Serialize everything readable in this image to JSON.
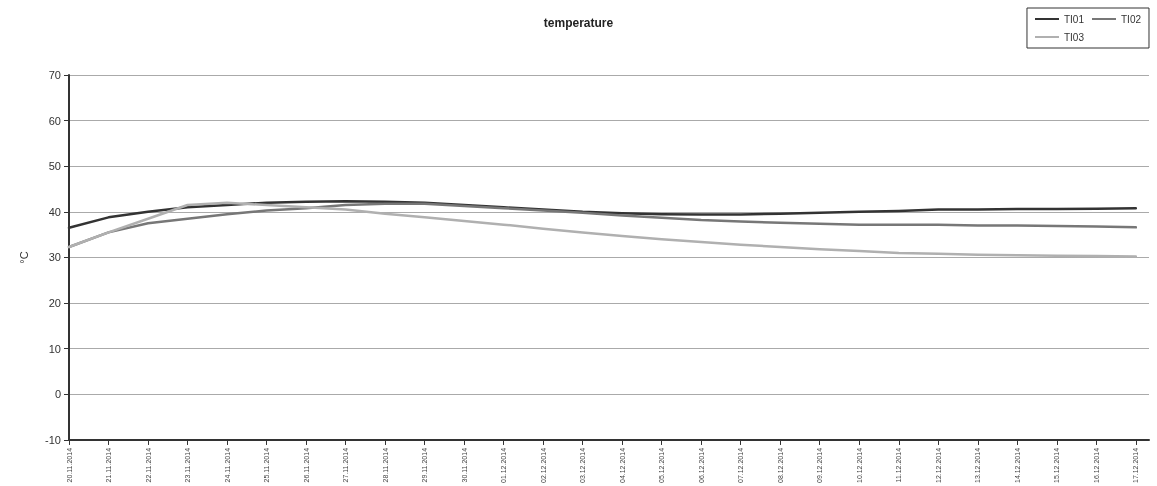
{
  "chart_data": {
    "type": "line",
    "title": "temperature",
    "ylabel": "°C",
    "x": [
      "2014-11-20",
      "2014-11-21",
      "2014-11-22",
      "2014-11-23",
      "2014-11-24",
      "2014-11-25",
      "2014-11-26",
      "2014-11-27",
      "2014-11-28",
      "2014-11-29",
      "2014-11-30",
      "2014-12-01",
      "2014-12-02",
      "2014-12-03",
      "2014-12-04",
      "2014-12-05",
      "2014-12-06",
      "2014-12-07",
      "2014-12-08",
      "2014-12-09",
      "2014-12-10",
      "2014-12-11",
      "2014-12-12",
      "2014-12-13",
      "2014-12-14",
      "2014-12-15",
      "2014-12-16",
      "2014-12-17"
    ],
    "series": [
      {
        "name": "TI01",
        "color": "#333333",
        "values": [
          36.5,
          38.8,
          40,
          41,
          41.5,
          42,
          42.2,
          42.3,
          42.2,
          42,
          41.5,
          41,
          40.5,
          40,
          39.7,
          39.5,
          39.4,
          39.4,
          39.6,
          39.8,
          40,
          40.2,
          40.5,
          40.5,
          40.6,
          40.6,
          40.7,
          40.8
        ]
      },
      {
        "name": "TI02",
        "color": "#777777",
        "values": [
          32.3,
          35.5,
          37.5,
          38.5,
          39.5,
          40.3,
          40.8,
          41.5,
          41.8,
          41.8,
          41.3,
          40.8,
          40.3,
          39.8,
          39.2,
          38.7,
          38.2,
          37.9,
          37.6,
          37.4,
          37.2,
          37.2,
          37.2,
          37,
          37,
          36.9,
          36.8,
          36.6
        ]
      },
      {
        "name": "TI03",
        "color": "#b0b0b0",
        "values": [
          32.3,
          35.5,
          38.5,
          41.5,
          42,
          41.5,
          41,
          40.5,
          39.6,
          38.8,
          38,
          37.2,
          36.3,
          35.5,
          34.7,
          34,
          33.4,
          32.8,
          32.3,
          31.8,
          31.4,
          31,
          30.8,
          30.6,
          30.5,
          30.4,
          30.3,
          30.2
        ]
      }
    ],
    "xlim": [
      "2014-11-20",
      "2014-12-17T08:00"
    ],
    "xticks": [
      {
        "value": "2014-11-20",
        "label": "20.11.2014"
      },
      {
        "value": "2014-11-21",
        "label": "21.11.2014"
      },
      {
        "value": "2014-11-22",
        "label": "22.11.2014"
      },
      {
        "value": "2014-11-23",
        "label": "23.11.2014"
      },
      {
        "value": "2014-11-24",
        "label": "24.11.2014"
      },
      {
        "value": "2014-11-25",
        "label": "25.11.2014"
      },
      {
        "value": "2014-11-26",
        "label": "26.11.2014"
      },
      {
        "value": "2014-11-27",
        "label": "27.11.2014"
      },
      {
        "value": "2014-11-28",
        "label": "28.11.2014"
      },
      {
        "value": "2014-11-29",
        "label": "29.11.2014"
      },
      {
        "value": "2014-11-30",
        "label": "30.11.2014"
      },
      {
        "value": "2014-12-01",
        "label": "01.12.2014"
      },
      {
        "value": "2014-12-02",
        "label": "02.12.2014"
      },
      {
        "value": "2014-12-03",
        "label": "03.12.2014"
      },
      {
        "value": "2014-12-04",
        "label": "04.12.2014"
      },
      {
        "value": "2014-12-05",
        "label": "05.12.2014"
      },
      {
        "value": "2014-12-06",
        "label": "06.12.2014"
      },
      {
        "value": "2014-12-07",
        "label": "07.12.2014"
      },
      {
        "value": "2014-12-08",
        "label": "08.12.2014"
      },
      {
        "value": "2014-12-09",
        "label": "09.12.2014"
      },
      {
        "value": "2014-12-10",
        "label": "10.12.2014"
      },
      {
        "value": "2014-12-11",
        "label": "11.12.2014"
      },
      {
        "value": "2014-12-12",
        "label": "12.12.2014"
      },
      {
        "value": "2014-12-13",
        "label": "13.12.2014"
      },
      {
        "value": "2014-12-14",
        "label": "14.12.2014"
      },
      {
        "value": "2014-12-15",
        "label": "15.12.2014"
      },
      {
        "value": "2014-12-16",
        "label": "16.12.2014"
      },
      {
        "value": "2014-12-17",
        "label": "17.12.2014"
      }
    ],
    "ylim": [
      -10,
      70
    ],
    "yticks": [
      -10,
      0,
      10,
      20,
      30,
      40,
      50,
      60,
      70
    ],
    "grid": "y",
    "legend": "top right",
    "marker": "none",
    "line_style": "solid"
  }
}
